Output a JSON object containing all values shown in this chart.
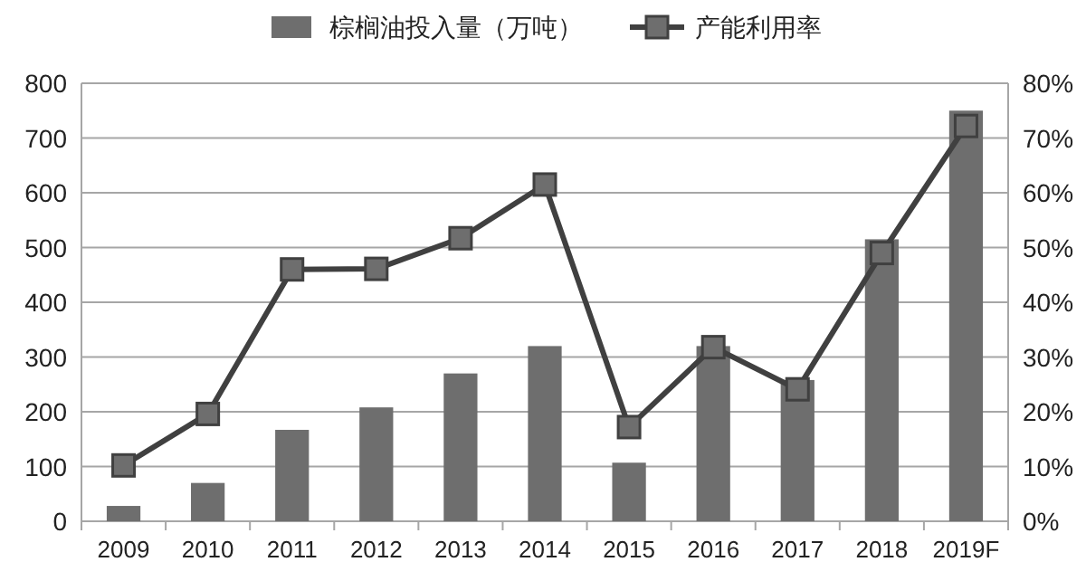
{
  "chart_data": {
    "type": "bar",
    "categories": [
      "2009",
      "2010",
      "2011",
      "2012",
      "2013",
      "2014",
      "2015",
      "2016",
      "2017",
      "2018",
      "2019F"
    ],
    "series": [
      {
        "name": "棕榈油投入量（万吨）",
        "color": "#6e6e6e",
        "values": [
          28,
          70,
          167,
          208,
          270,
          320,
          107,
          320,
          258,
          515,
          750
        ]
      },
      {
        "name": "产能利用率",
        "type": "line",
        "axis": "y2",
        "color": "#404040",
        "marker": "square",
        "values": [
          10.2,
          19.6,
          46,
          46.1,
          51.7,
          61.5,
          17.2,
          31.8,
          24.1,
          49,
          72.2
        ]
      }
    ],
    "ylim": [
      0,
      800
    ],
    "yticks": [
      0,
      100,
      200,
      300,
      400,
      500,
      600,
      700,
      800
    ],
    "y2lim": [
      0,
      80
    ],
    "y2ticks": [
      {
        "value": 0,
        "label": "0%"
      },
      {
        "value": 10,
        "label": "10%"
      },
      {
        "value": 20,
        "label": "20%"
      },
      {
        "value": 30,
        "label": "30%"
      },
      {
        "value": 40,
        "label": "40%"
      },
      {
        "value": 50,
        "label": "50%"
      },
      {
        "value": 60,
        "label": "60%"
      },
      {
        "value": 70,
        "label": "70%"
      },
      {
        "value": 80,
        "label": "80%"
      }
    ],
    "grid": "y",
    "legend": "top"
  }
}
